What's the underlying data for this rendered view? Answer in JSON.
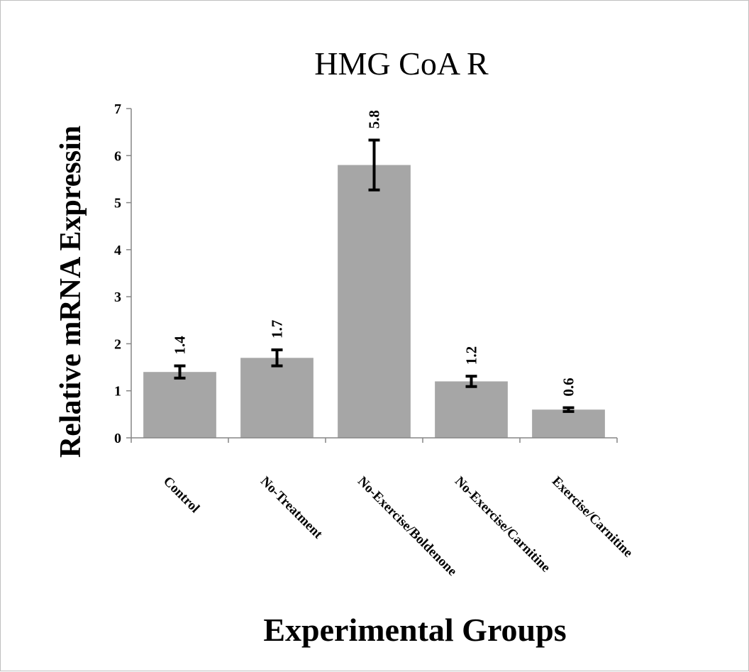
{
  "chart_data": {
    "type": "bar",
    "title": "HMG CoA R",
    "xlabel": "Experimental Groups",
    "ylabel": "Relative mRNA Expressin",
    "categories": [
      "Control",
      "No-Treatment",
      "No-Exercise/Boldenone",
      "No-Exercise/Carnitine",
      "Exercise/Carnitine"
    ],
    "values": [
      1.4,
      1.7,
      5.8,
      1.2,
      0.6
    ],
    "data_labels": [
      "1.4",
      "1.7",
      "5.8",
      "1.2",
      "0.6"
    ],
    "error_bars": [
      0.13,
      0.17,
      0.53,
      0.11,
      0.04
    ],
    "ylim": [
      0,
      7
    ],
    "yticks": [
      "0",
      "1",
      "2",
      "3",
      "4",
      "5",
      "6",
      "7"
    ],
    "bar_color": "#a6a6a6",
    "grid": false,
    "legend": "none"
  }
}
